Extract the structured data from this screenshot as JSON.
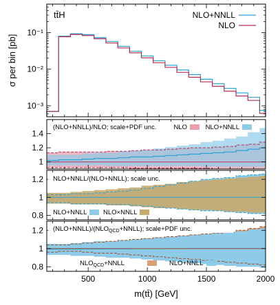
{
  "figure": {
    "xlabel": "m(tt̄) [GeV]",
    "x_ticks": [
      "500",
      "1000",
      "1500",
      "2000"
    ]
  },
  "chart_data": [
    {
      "type": "line",
      "title": "tt̄H",
      "ylabel": "σ per bin [pb]",
      "y_scale": "log",
      "ylim": [
        0.0005,
        0.6
      ],
      "y_ticks": [
        "10⁻³",
        "10⁻²",
        "10⁻¹"
      ],
      "xlim": [
        150,
        2000
      ],
      "bin_edges": [
        150,
        250,
        350,
        450,
        550,
        650,
        750,
        850,
        950,
        1050,
        1150,
        1250,
        1350,
        1450,
        1550,
        1650,
        1750,
        1850,
        1950,
        2000
      ],
      "series": [
        {
          "name": "NLO+NNLL",
          "color": "#29a3d6",
          "values": [
            0.0007,
            0.08,
            0.093,
            0.088,
            0.073,
            0.057,
            0.042,
            0.031,
            0.023,
            0.017,
            0.0128,
            0.0095,
            0.0071,
            0.0053,
            0.004,
            0.003,
            0.00225,
            0.0017,
            0.00075
          ]
        },
        {
          "name": "NLO",
          "color": "#b5305a",
          "values": [
            0.0007,
            0.077,
            0.089,
            0.083,
            0.068,
            0.052,
            0.038,
            0.028,
            0.0205,
            0.015,
            0.0112,
            0.0082,
            0.006,
            0.0045,
            0.0034,
            0.0025,
            0.00185,
            0.0014,
            0.00062
          ]
        }
      ]
    },
    {
      "type": "area",
      "title": "(NLO+NNLL)/NLO; scale+PDF unc.",
      "ylim": [
        0.9,
        1.6
      ],
      "y_ticks": [
        "1",
        "1.2",
        "1.4"
      ],
      "legend": [
        {
          "name": "NLO",
          "color": "#e8a0ad"
        },
        {
          "name": "NLO+NNLL",
          "color": "#8ecbe8"
        }
      ],
      "central": [
        1.02,
        1.03,
        1.03,
        1.04,
        1.05,
        1.05,
        1.06,
        1.07,
        1.07,
        1.08,
        1.09,
        1.1,
        1.11,
        1.12,
        1.13,
        1.14,
        1.16,
        1.18,
        1.2
      ],
      "band_lo": [
        0.95,
        0.95,
        0.95,
        0.95,
        0.95,
        0.94,
        0.94,
        0.94,
        0.94,
        0.94,
        0.94,
        0.94,
        0.94,
        0.93,
        0.93,
        0.93,
        0.93,
        0.93,
        0.93
      ],
      "band_hi": [
        1.1,
        1.1,
        1.1,
        1.12,
        1.13,
        1.13,
        1.15,
        1.16,
        1.17,
        1.19,
        1.21,
        1.23,
        1.25,
        1.28,
        1.3,
        1.33,
        1.36,
        1.42,
        1.48
      ],
      "nlo_band": [
        [
          0.92,
          1.13
        ],
        [
          0.92,
          1.14
        ],
        [
          0.92,
          1.14
        ],
        [
          0.92,
          1.14
        ],
        [
          0.92,
          1.14
        ],
        [
          0.92,
          1.15
        ],
        [
          0.92,
          1.15
        ],
        [
          0.91,
          1.16
        ],
        [
          0.91,
          1.17
        ],
        [
          0.91,
          1.17
        ],
        [
          0.91,
          1.18
        ],
        [
          0.91,
          1.19
        ],
        [
          0.91,
          1.2
        ],
        [
          0.91,
          1.2
        ],
        [
          0.9,
          1.21
        ],
        [
          0.9,
          1.22
        ],
        [
          0.9,
          1.24
        ],
        [
          0.9,
          1.25
        ],
        [
          0.9,
          1.28
        ]
      ]
    },
    {
      "type": "area",
      "title": "NLO+NNLL/(NLO+NNLL); scale unc.",
      "ylim": [
        0.75,
        1.3
      ],
      "y_ticks": [
        "0.8",
        "1",
        "1.2"
      ],
      "legend": [
        {
          "name": "NLO+NNLL",
          "color": "#8ecbe8"
        },
        {
          "name": "NLO×NNLL",
          "color": "#c8aa6e"
        }
      ],
      "blue_band": [
        [
          0.94,
          1.03
        ],
        [
          0.94,
          1.03
        ],
        [
          0.93,
          1.04
        ],
        [
          0.93,
          1.04
        ],
        [
          0.93,
          1.05
        ],
        [
          0.92,
          1.06
        ],
        [
          0.92,
          1.07
        ],
        [
          0.91,
          1.08
        ],
        [
          0.9,
          1.1
        ],
        [
          0.89,
          1.12
        ],
        [
          0.88,
          1.14
        ],
        [
          0.87,
          1.16
        ],
        [
          0.86,
          1.18
        ],
        [
          0.85,
          1.2
        ],
        [
          0.85,
          1.21
        ],
        [
          0.84,
          1.22
        ],
        [
          0.83,
          1.24
        ],
        [
          0.82,
          1.25
        ],
        [
          0.82,
          1.26
        ]
      ],
      "tan_band": [
        [
          0.93,
          1.05
        ],
        [
          0.93,
          1.05
        ],
        [
          0.92,
          1.06
        ],
        [
          0.92,
          1.07
        ],
        [
          0.92,
          1.08
        ],
        [
          0.91,
          1.09
        ],
        [
          0.91,
          1.1
        ],
        [
          0.9,
          1.11
        ],
        [
          0.89,
          1.13
        ],
        [
          0.88,
          1.14
        ],
        [
          0.88,
          1.15
        ],
        [
          0.87,
          1.17
        ],
        [
          0.86,
          1.18
        ],
        [
          0.86,
          1.19
        ],
        [
          0.85,
          1.2
        ],
        [
          0.84,
          1.21
        ],
        [
          0.84,
          1.22
        ],
        [
          0.83,
          1.23
        ],
        [
          0.83,
          1.24
        ]
      ]
    },
    {
      "type": "area",
      "title": "(NLO+NNLL)/(NLO_QCD+NNLL); scale+PDF unc.",
      "ylim": [
        0.75,
        1.3
      ],
      "y_ticks": [
        "0.8",
        "1",
        "1.2"
      ],
      "legend": [
        {
          "name": "NLO_QCD+NNLL",
          "color": "#d4a07a"
        },
        {
          "name": "NLO+NNLL",
          "color": "#8ecbe8"
        }
      ],
      "central": [
        0.995,
        0.995,
        0.995,
        0.996,
        0.996,
        0.997,
        0.997,
        0.998,
        0.998,
        0.998,
        0.999,
        0.999,
        1.0,
        1.0,
        1.0,
        1.0,
        1.0,
        1.0,
        1.0
      ],
      "blue_band": [
        [
          0.93,
          1.05
        ],
        [
          0.93,
          1.05
        ],
        [
          0.92,
          1.06
        ],
        [
          0.92,
          1.07
        ],
        [
          0.91,
          1.08
        ],
        [
          0.9,
          1.08
        ],
        [
          0.9,
          1.09
        ],
        [
          0.89,
          1.1
        ],
        [
          0.88,
          1.11
        ],
        [
          0.87,
          1.12
        ],
        [
          0.86,
          1.13
        ],
        [
          0.85,
          1.14
        ],
        [
          0.84,
          1.15
        ],
        [
          0.83,
          1.16
        ],
        [
          0.82,
          1.17
        ],
        [
          0.81,
          1.18
        ],
        [
          0.8,
          1.19
        ],
        [
          0.8,
          1.21
        ],
        [
          0.79,
          1.22
        ]
      ],
      "brown_band": [
        [
          0.96,
          1.04
        ],
        [
          0.97,
          1.04
        ],
        [
          0.97,
          1.05
        ],
        [
          0.96,
          1.06
        ],
        [
          0.95,
          1.07
        ],
        [
          0.95,
          1.08
        ],
        [
          0.94,
          1.09
        ],
        [
          0.93,
          1.1
        ],
        [
          0.92,
          1.11
        ],
        [
          0.91,
          1.12
        ],
        [
          0.9,
          1.13
        ],
        [
          0.89,
          1.14
        ],
        [
          0.88,
          1.15
        ],
        [
          0.87,
          1.16
        ],
        [
          0.86,
          1.17
        ],
        [
          0.85,
          1.18
        ],
        [
          0.84,
          1.2
        ],
        [
          0.83,
          1.22
        ],
        [
          0.82,
          1.24
        ]
      ]
    }
  ]
}
